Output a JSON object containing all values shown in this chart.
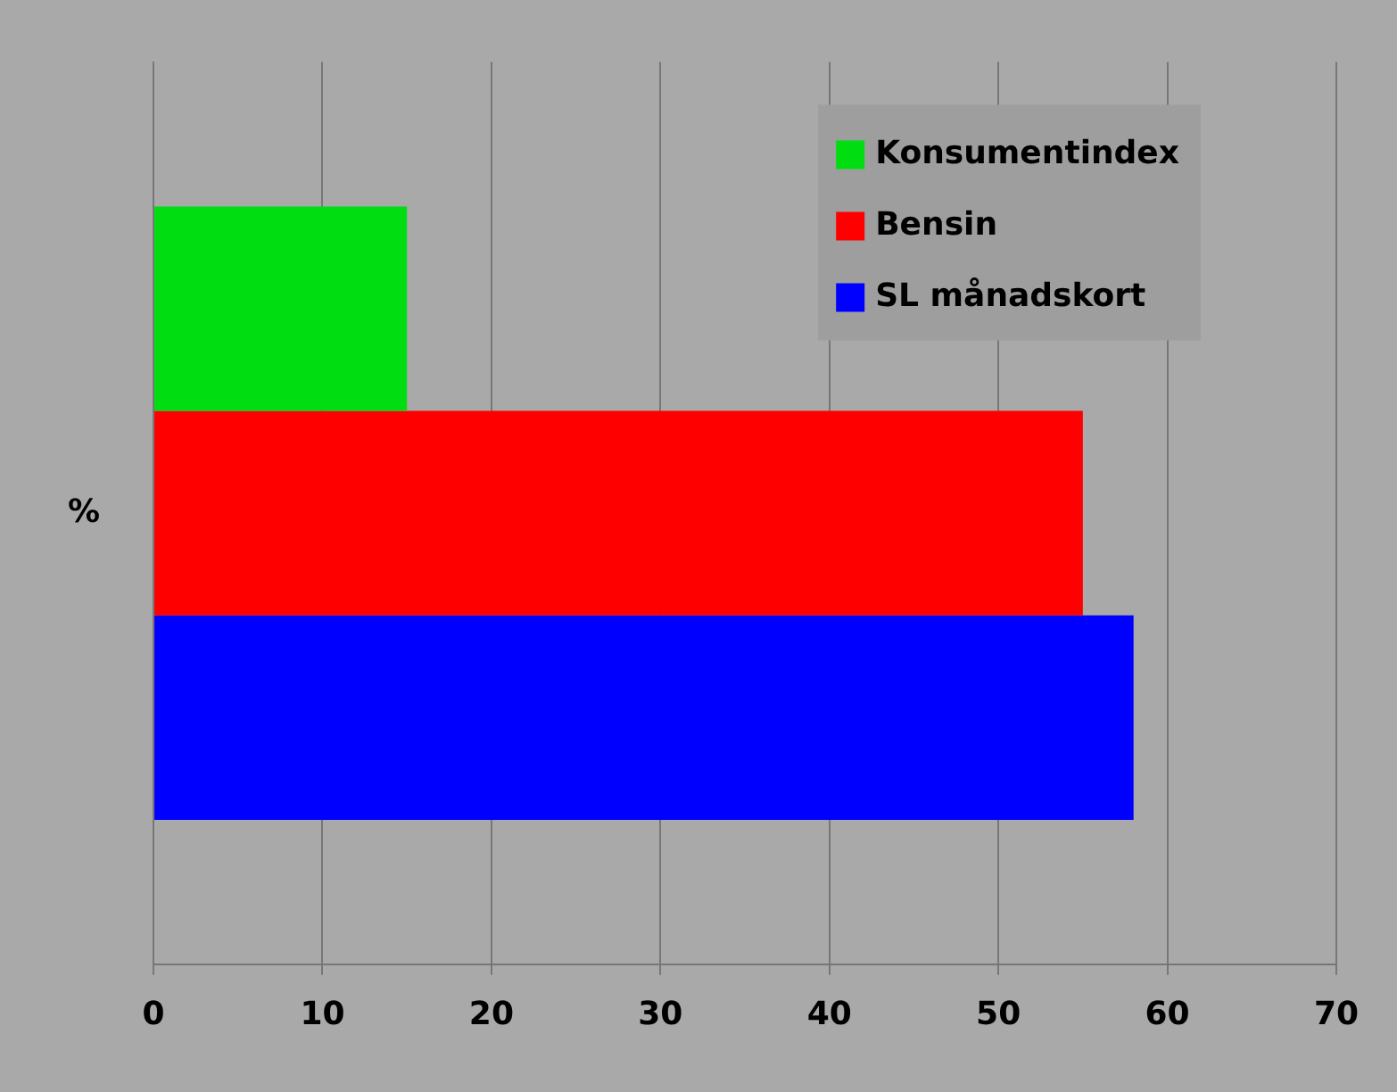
{
  "chart_data": {
    "type": "bar",
    "orientation": "horizontal",
    "categories": [
      "%"
    ],
    "series": [
      {
        "name": "Konsumentindex",
        "color": "#00dd11",
        "values": [
          15
        ]
      },
      {
        "name": "Bensin",
        "color": "#ff0000",
        "values": [
          55
        ]
      },
      {
        "name": "SL månadskort",
        "color": "#0000ff",
        "values": [
          58
        ]
      }
    ],
    "xlim": [
      0,
      70
    ],
    "xticks": [
      0,
      10,
      20,
      30,
      40,
      50,
      60,
      70
    ],
    "grid": "x",
    "legend": "top right"
  }
}
